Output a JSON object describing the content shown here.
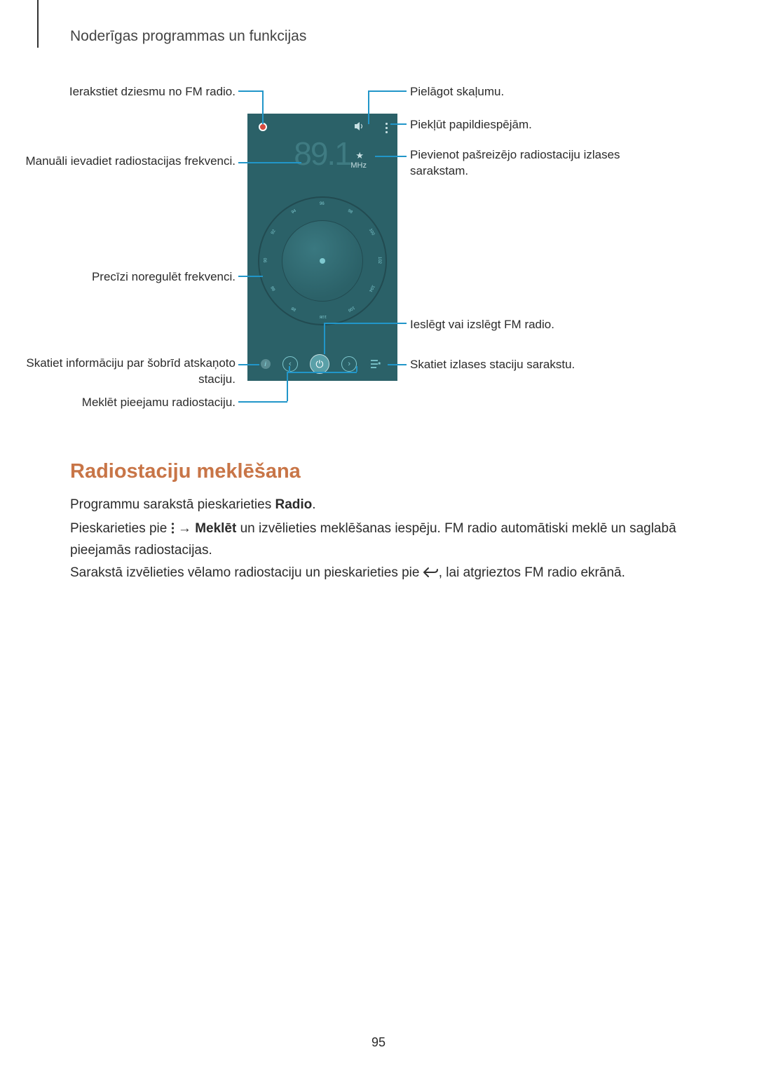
{
  "page_header": "Noderīgas programmas un funkcijas",
  "page_number": "95",
  "radio_ui": {
    "frequency": "89.1",
    "unit": "MHz",
    "dial_ticks": [
      "88",
      "90",
      "92",
      "94",
      "96",
      "98",
      "100",
      "102",
      "104",
      "106",
      "108",
      "88"
    ],
    "colors": {
      "phone_bg": "#2b6168",
      "accent": "#7fc9d0",
      "callout": "#2196c9",
      "heading": "#c87547"
    }
  },
  "callouts": {
    "left": [
      "Ierakstiet dziesmu no FM radio.",
      "Manuāli ievadiet radiostacijas frekvenci.",
      "Precīzi noregulēt frekvenci.",
      "Skatiet informāciju par šobrīd atskaņoto staciju.",
      "Meklēt pieejamu radiostaciju."
    ],
    "right": [
      "Pielāgot skaļumu.",
      "Piekļūt papildiespējām.",
      "Pievienot pašreizējo radiostaciju izlases sarakstam.",
      "Ieslēgt vai izslēgt FM radio.",
      "Skatiet izlases staciju sarakstu."
    ]
  },
  "section_heading": "Radiostaciju meklēšana",
  "body": {
    "p1_a": "Programmu sarakstā pieskarieties ",
    "p1_b": "Radio",
    "p1_c": ".",
    "p2_a": "Pieskarieties pie ",
    "p2_b": " → ",
    "p2_c": "Meklēt",
    "p2_d": " un izvēlieties meklēšanas iespēju. FM radio automātiski meklē un saglabā pieejamās radiostacijas.",
    "p3_a": "Sarakstā izvēlieties vēlamo radiostaciju un pieskarieties pie ",
    "p3_b": ", lai atgrieztos FM radio ekrānā."
  }
}
